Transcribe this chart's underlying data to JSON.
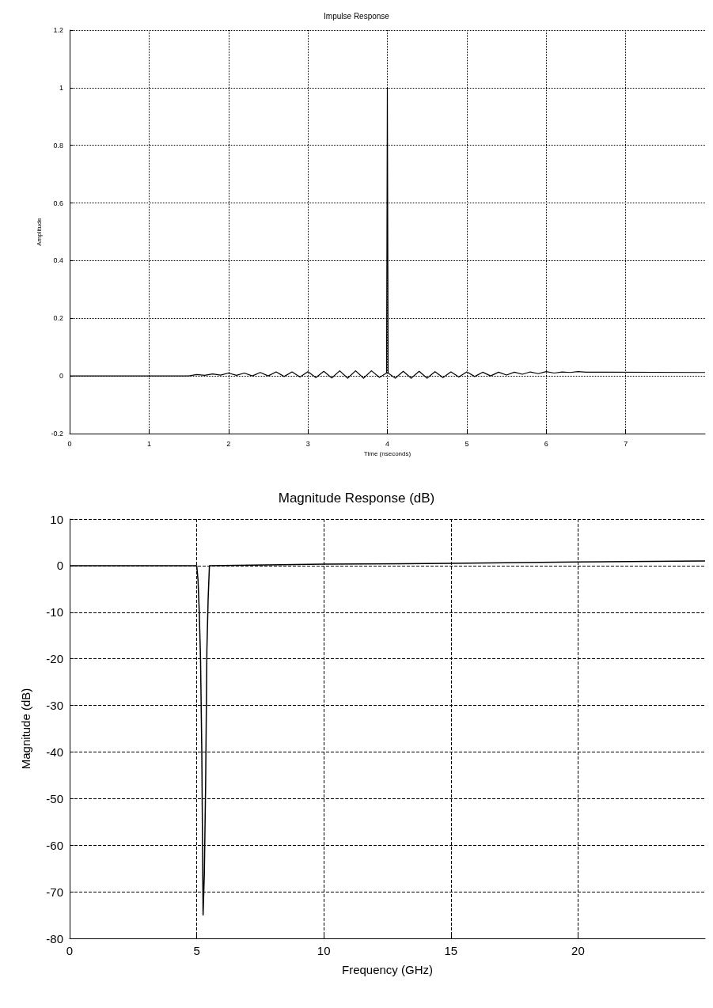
{
  "chart_data": [
    {
      "type": "line",
      "title": "Impulse Response",
      "xlabel": "Time (nseconds)",
      "ylabel": "Amplitude",
      "xlim": [
        0,
        8
      ],
      "xticks": [
        0,
        1,
        2,
        3,
        4,
        5,
        6,
        7
      ],
      "ylim": [
        -0.2,
        1.2
      ],
      "yticks": [
        -0.2,
        0,
        0.2,
        0.4,
        0.6,
        0.8,
        1,
        1.2
      ],
      "grid": true,
      "line_style": "solid",
      "series": [
        {
          "color": "#000000",
          "x": [
            0,
            1.5,
            1.6,
            1.7,
            1.8,
            1.9,
            2.0,
            2.1,
            2.2,
            2.3,
            2.4,
            2.5,
            2.6,
            2.7,
            2.8,
            2.9,
            3.0,
            3.1,
            3.2,
            3.3,
            3.4,
            3.5,
            3.6,
            3.7,
            3.8,
            3.9,
            3.99,
            4.0,
            4.01,
            4.1,
            4.2,
            4.3,
            4.4,
            4.5,
            4.6,
            4.7,
            4.8,
            4.9,
            5.0,
            5.1,
            5.2,
            5.3,
            5.4,
            5.5,
            5.6,
            5.7,
            5.8,
            5.9,
            6.0,
            6.1,
            6.2,
            6.3,
            6.4,
            6.5,
            8
          ],
          "values": [
            0,
            0,
            0.005,
            0.002,
            0.007,
            0.003,
            0.01,
            0.002,
            0.01,
            0,
            0.012,
            0,
            0.014,
            -0.002,
            0.014,
            -0.004,
            0.015,
            -0.006,
            0.016,
            -0.007,
            0.018,
            -0.008,
            0.018,
            -0.008,
            0.018,
            -0.005,
            0.01,
            1.0,
            0.01,
            -0.008,
            0.016,
            -0.008,
            0.016,
            -0.008,
            0.015,
            -0.006,
            0.014,
            -0.004,
            0.014,
            -0.002,
            0.013,
            0,
            0.013,
            0.003,
            0.013,
            0.006,
            0.014,
            0.008,
            0.015,
            0.01,
            0.014,
            0.012,
            0.015,
            0.013,
            0.012
          ]
        }
      ]
    },
    {
      "type": "line",
      "title": "Magnitude Response (dB)",
      "xlabel": "Frequency (GHz)",
      "ylabel": "Magnitude (dB)",
      "xlim": [
        0,
        25
      ],
      "xticks": [
        0,
        5,
        10,
        15,
        20
      ],
      "ylim": [
        -80,
        10
      ],
      "yticks": [
        -80,
        -70,
        -60,
        -50,
        -40,
        -30,
        -20,
        -10,
        0,
        10
      ],
      "grid": true,
      "line_style": "solid",
      "series": [
        {
          "color": "#000000",
          "x": [
            0,
            2.5,
            5.0,
            5.05,
            5.1,
            5.15,
            5.2,
            5.25,
            5.3,
            5.35,
            5.4,
            5.45,
            5.5,
            10,
            15,
            20,
            25
          ],
          "values": [
            0,
            0,
            0,
            -3,
            -10,
            -20,
            -40,
            -75,
            -66,
            -47,
            -18,
            -7,
            0,
            0.3,
            0.5,
            0.8,
            1
          ]
        }
      ]
    }
  ]
}
